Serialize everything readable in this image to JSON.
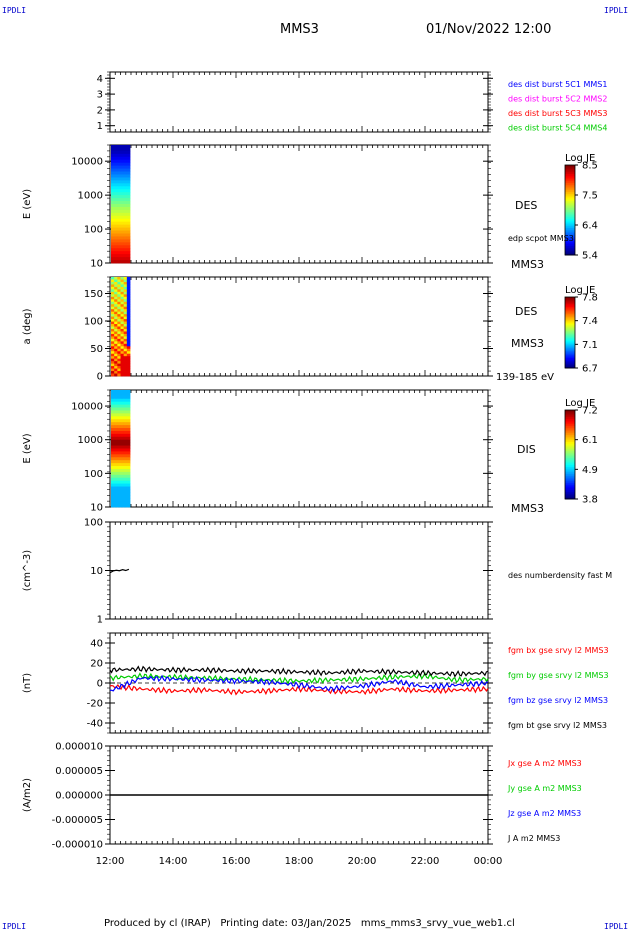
{
  "corners": {
    "label": "IPDLI"
  },
  "header": {
    "spacecraft": "MMS3",
    "datetime": "01/Nov/2022 12:00"
  },
  "footer": {
    "text": "Produced by cl (IRAP)   Printing date: 03/Jan/2025   mms_mms3_srvy_vue_web1.cl"
  },
  "chart_data": [
    {
      "type": "line",
      "panel": "spacecraft-availability",
      "ylabel": "",
      "yticks": [
        "1",
        "2",
        "3",
        "4"
      ],
      "ylim": [
        0.6,
        4.4
      ],
      "legend": [
        {
          "name": "des dist burst 5C1 MMS1",
          "color": "#0000ff"
        },
        {
          "name": "des dist burst 5C2 MMS2",
          "color": "#ff00ff"
        },
        {
          "name": "des dist burst 5C3 MMS3",
          "color": "#ff0000"
        },
        {
          "name": "des dist burst 5C4 MMS4",
          "color": "#00cc00"
        }
      ]
    },
    {
      "type": "heatmap",
      "panel": "des-energy-spectrogram",
      "ylabel": "E (eV)",
      "yscale": "log",
      "ylim": [
        10,
        30000
      ],
      "yticks": [
        "10",
        "100",
        "1000",
        "10000"
      ],
      "x_range": [
        "12:00",
        "12:40"
      ],
      "side_labels": [
        "DES",
        "edp scpot MMS3",
        "MMS3"
      ],
      "colorbar": {
        "title": "Log JE",
        "ticks": [
          "5.4",
          "6.4",
          "7.5",
          "8.5"
        ]
      }
    },
    {
      "type": "heatmap",
      "panel": "des-pitch-angle",
      "ylabel": "a (deg)",
      "ylim": [
        0,
        180
      ],
      "yticks": [
        "0",
        "50",
        "100",
        "150"
      ],
      "x_range": [
        "12:00",
        "12:40"
      ],
      "side_labels": [
        "DES",
        "MMS3",
        "139-185 eV"
      ],
      "colorbar": {
        "title": "Log JE",
        "ticks": [
          "6.7",
          "7.1",
          "7.4",
          "7.8"
        ]
      }
    },
    {
      "type": "heatmap",
      "panel": "dis-energy-spectrogram",
      "ylabel": "E (eV)",
      "yscale": "log",
      "ylim": [
        10,
        30000
      ],
      "yticks": [
        "10",
        "100",
        "1000",
        "10000"
      ],
      "x_range": [
        "12:00",
        "12:40"
      ],
      "side_labels": [
        "DIS",
        "MMS3"
      ],
      "colorbar": {
        "title": "Log JE",
        "ticks": [
          "3.8",
          "4.9",
          "6.1",
          "7.2"
        ]
      }
    },
    {
      "type": "line",
      "panel": "density",
      "ylabel": "(cm^-3)",
      "yscale": "log",
      "ylim": [
        1,
        100
      ],
      "yticks": [
        "1",
        "10",
        "100"
      ],
      "series": [
        {
          "name": "des numberdensity fast M",
          "color": "#000000",
          "x_hours": [
            0.0,
            0.1,
            0.2,
            0.3,
            0.4,
            0.5,
            0.6
          ],
          "values": [
            9.0,
            9.8,
            10.1,
            9.9,
            10.4,
            10.0,
            10.6
          ]
        }
      ]
    },
    {
      "type": "line",
      "panel": "magnetic-field",
      "ylabel": "(nT)",
      "ylim": [
        -50,
        50
      ],
      "yticks": [
        "-40",
        "-20",
        "0",
        "20",
        "40"
      ],
      "series": [
        {
          "name": "fgm bx gse srvy l2 MMS3",
          "color": "#ff0000",
          "x_hours": [
            0,
            1,
            2,
            3,
            4,
            5,
            6,
            7,
            8,
            9,
            10,
            11,
            12
          ],
          "values": [
            -3,
            -6,
            -8,
            -7,
            -9,
            -8,
            -6,
            -8,
            -9,
            -6,
            -8,
            -7,
            -6
          ]
        },
        {
          "name": "fgm by gse srvy l2 MMS3",
          "color": "#00cc00",
          "x_hours": [
            0,
            1,
            2,
            3,
            4,
            5,
            6,
            7,
            8,
            9,
            10,
            11,
            12
          ],
          "values": [
            5,
            7,
            6,
            5,
            4,
            3,
            2,
            3,
            4,
            6,
            7,
            3,
            4
          ]
        },
        {
          "name": "fgm bz gse srvy l2 MMS3",
          "color": "#0000ff",
          "x_hours": [
            0,
            1,
            2,
            3,
            4,
            5,
            6,
            7,
            8,
            9,
            10,
            11,
            12
          ],
          "values": [
            -8,
            5,
            4,
            3,
            2,
            1,
            -2,
            -6,
            -3,
            2,
            -4,
            -2,
            0
          ]
        },
        {
          "name": "fgm bt gse srvy l2 MMS3",
          "color": "#000000",
          "x_hours": [
            0,
            1,
            2,
            3,
            4,
            5,
            6,
            7,
            8,
            9,
            10,
            11,
            12
          ],
          "values": [
            13,
            14,
            13,
            13,
            12,
            12,
            11,
            10,
            12,
            11,
            10,
            9,
            10
          ]
        }
      ]
    },
    {
      "type": "line",
      "panel": "current-density",
      "ylabel": "(A/m2)",
      "ylim": [
        -1e-05,
        1e-05
      ],
      "yticks": [
        "-0.000010",
        "-0.000005",
        "0.000000",
        "0.000005",
        "0.000010"
      ],
      "series": [
        {
          "name": "Jx gse A m2 MMS3",
          "color": "#ff0000"
        },
        {
          "name": "Jy gse A m2 MMS3",
          "color": "#00cc00"
        },
        {
          "name": "Jz gse A m2 MMS3",
          "color": "#0000ff"
        },
        {
          "name": "J A m2 MMS3",
          "color": "#000000",
          "x_hours": [
            0,
            12
          ],
          "values": [
            0,
            0
          ]
        }
      ],
      "xticks": [
        "12:00",
        "14:00",
        "16:00",
        "18:00",
        "20:00",
        "22:00",
        "00:00"
      ],
      "xlim_hours": [
        0,
        12
      ]
    }
  ]
}
